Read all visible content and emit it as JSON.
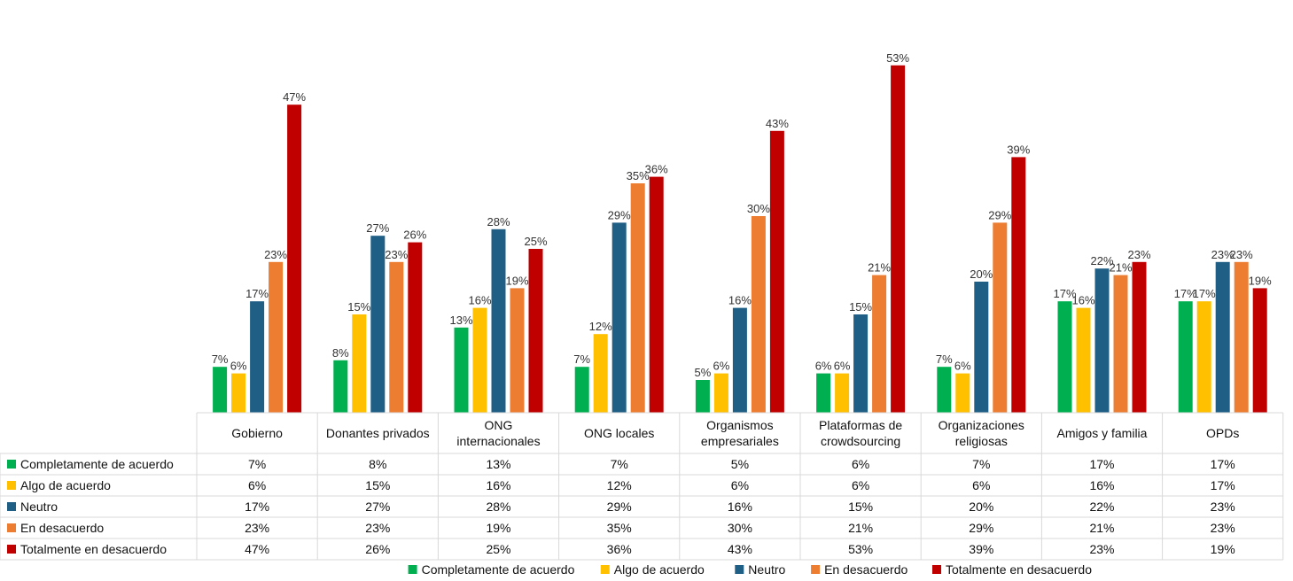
{
  "chart_data": {
    "type": "bar",
    "categories": [
      [
        "Gobierno"
      ],
      [
        "Donantes privados"
      ],
      [
        "ONG",
        "internacionales"
      ],
      [
        "ONG locales"
      ],
      [
        "Organismos",
        "empresariales"
      ],
      [
        "Plataformas de",
        "crowdsourcing"
      ],
      [
        "Organizaciones",
        "religiosas"
      ],
      [
        "Amigos y familia"
      ],
      [
        "OPDs"
      ]
    ],
    "series": [
      {
        "name": "Completamente de acuerdo",
        "color": "#00b050",
        "values": [
          7,
          8,
          13,
          7,
          5,
          6,
          7,
          17,
          17
        ]
      },
      {
        "name": "Algo de acuerdo",
        "color": "#ffc000",
        "values": [
          6,
          15,
          16,
          12,
          6,
          6,
          6,
          16,
          17
        ]
      },
      {
        "name": "Neutro",
        "color": "#1f5f85",
        "values": [
          17,
          27,
          28,
          29,
          16,
          15,
          20,
          22,
          23
        ]
      },
      {
        "name": "En desacuerdo",
        "color": "#ed7d31",
        "values": [
          23,
          23,
          19,
          35,
          30,
          21,
          29,
          21,
          23
        ]
      },
      {
        "name": "Totalmente en desacuerdo",
        "color": "#c00000",
        "values": [
          47,
          26,
          25,
          36,
          43,
          53,
          39,
          23,
          19
        ]
      }
    ],
    "value_suffix": "%",
    "ylim": [
      0,
      55
    ],
    "grid": false,
    "legend_position": "bottom",
    "data_table": true
  }
}
